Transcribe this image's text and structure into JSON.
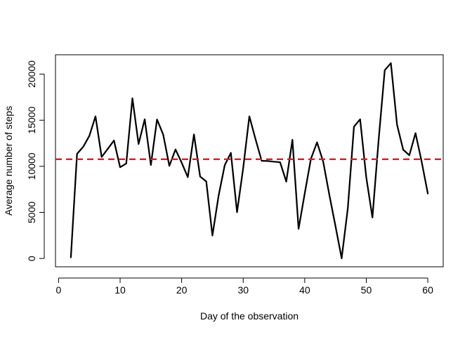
{
  "chart_data": {
    "type": "line",
    "title": "",
    "xlabel": "Day of the observation",
    "ylabel": "Average number of steps",
    "xlim": [
      -0.5,
      62.5
    ],
    "ylim": [
      -900,
      22100
    ],
    "x_ticks": [
      0,
      10,
      20,
      30,
      40,
      50,
      60
    ],
    "y_ticks": [
      0,
      5000,
      10000,
      15000,
      20000
    ],
    "grid": false,
    "series": [
      {
        "color": "#000000",
        "x": [
          2,
          3,
          4,
          5,
          6,
          7,
          8,
          9,
          10,
          11,
          12,
          13,
          14,
          15,
          16,
          17,
          18,
          19,
          20,
          21,
          22,
          23,
          24,
          25,
          26,
          27,
          28,
          29,
          30,
          31,
          32,
          33,
          34,
          35,
          36,
          37,
          38,
          39,
          40,
          41,
          42,
          43,
          44,
          45,
          46,
          47,
          48,
          49,
          50,
          51,
          52,
          53,
          54,
          55,
          56,
          57,
          58,
          59,
          60
        ],
        "values": [
          126,
          11350,
          12110,
          13300,
          15420,
          11010,
          11900,
          12800,
          9900,
          10300,
          17380,
          12420,
          15100,
          10140,
          15080,
          13450,
          10050,
          11830,
          10400,
          8820,
          13460,
          8900,
          8350,
          2490,
          6800,
          10120,
          11460,
          5020,
          9810,
          15420,
          12950,
          10600,
          10570,
          10500,
          10440,
          8340,
          12880,
          3220,
          7050,
          10800,
          12600,
          10500,
          6900,
          3500,
          20,
          5440,
          14300,
          15100,
          8800,
          4450,
          12800,
          20420,
          21190,
          14500,
          11800,
          11200,
          13600,
          10500,
          7050
        ]
      }
    ],
    "reference_line": {
      "y": 10766.19,
      "color": "#e31a1c",
      "style": "dashed"
    }
  }
}
